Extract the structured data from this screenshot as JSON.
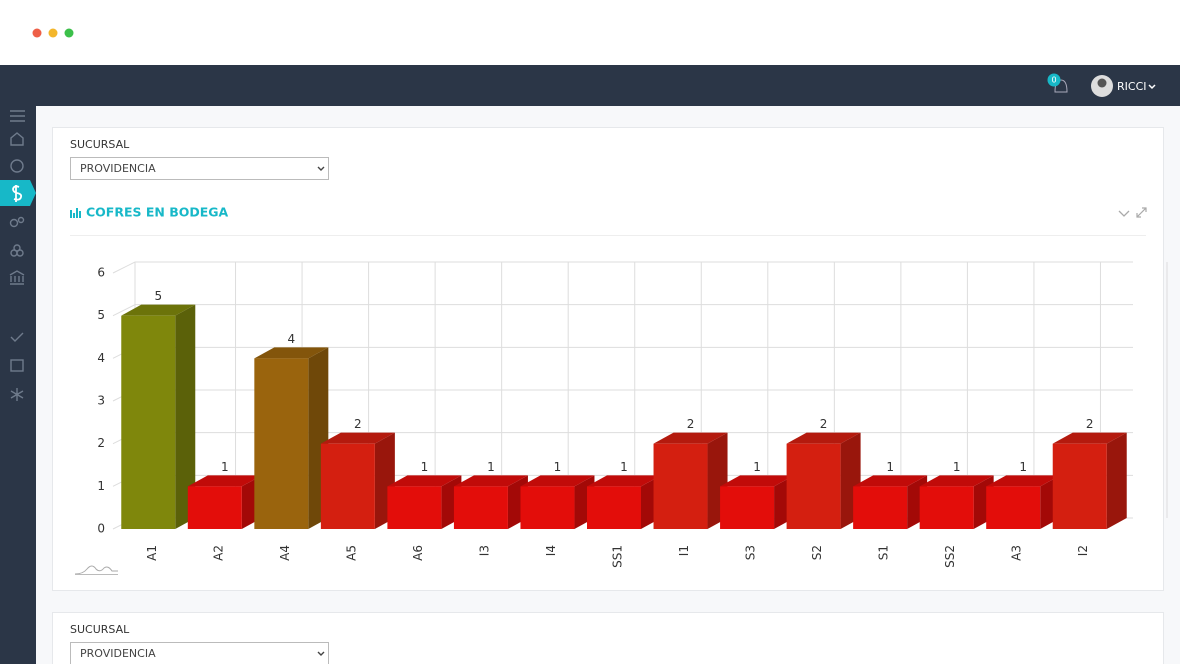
{
  "header": {
    "notification_count": 0,
    "user_name": "RICCI"
  },
  "panels": [
    {
      "filter_label": "SUCURSAL",
      "filter_value": "PROVIDENCIA",
      "chart_data": {
        "type": "bar3d",
        "title": "COFRES EN BODEGA",
        "categories": [
          "A1",
          "A2",
          "A4",
          "A5",
          "A6",
          "I3",
          "I4",
          "SS1",
          "I1",
          "S3",
          "S2",
          "S1",
          "SS2",
          "A3",
          "I2"
        ],
        "values": [
          5,
          1,
          4,
          2,
          1,
          1,
          1,
          1,
          2,
          1,
          2,
          1,
          1,
          1,
          2
        ],
        "colors": [
          "#7f870c",
          "#e30d0a",
          "#9a640d",
          "#d41f10",
          "#e30d0a",
          "#e30d0a",
          "#e30d0a",
          "#e30d0a",
          "#d41f10",
          "#e30d0a",
          "#d41f10",
          "#e30d0a",
          "#e30d0a",
          "#e30d0a",
          "#d41f10"
        ],
        "ylim": [
          0,
          6
        ],
        "yticks": [
          0,
          1,
          2,
          3,
          4,
          5,
          6
        ],
        "grid": true
      }
    },
    {
      "filter_label": "SUCURSAL",
      "filter_value": "PROVIDENCIA"
    }
  ]
}
